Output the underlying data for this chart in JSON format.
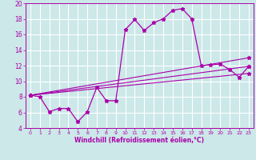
{
  "xlabel": "Windchill (Refroidissement éolien,°C)",
  "bg_color": "#cce8e8",
  "line_color": "#aa00aa",
  "grid_color": "#ffffff",
  "xlim": [
    -0.5,
    23.5
  ],
  "ylim": [
    4,
    20
  ],
  "xticks": [
    0,
    1,
    2,
    3,
    4,
    5,
    6,
    7,
    8,
    9,
    10,
    11,
    12,
    13,
    14,
    15,
    16,
    17,
    18,
    19,
    20,
    21,
    22,
    23
  ],
  "yticks": [
    4,
    6,
    8,
    10,
    12,
    14,
    16,
    18,
    20
  ],
  "line1_x": [
    0,
    1,
    2,
    3,
    4,
    5,
    6,
    7,
    8,
    9,
    10,
    11,
    12,
    13,
    14,
    15,
    16,
    17,
    18,
    19,
    20,
    21,
    22,
    23
  ],
  "line1_y": [
    8.2,
    8.0,
    6.1,
    6.5,
    6.5,
    4.8,
    6.1,
    9.2,
    7.5,
    7.5,
    16.6,
    17.9,
    16.5,
    17.5,
    18.0,
    19.1,
    19.3,
    18.0,
    12.0,
    12.1,
    12.2,
    11.5,
    10.5,
    11.9
  ],
  "straight_lines": [
    {
      "x": [
        0,
        23
      ],
      "y": [
        8.2,
        13.0
      ],
      "markers": [
        0,
        23
      ]
    },
    {
      "x": [
        0,
        23
      ],
      "y": [
        8.2,
        11.9
      ],
      "markers": [
        0,
        23
      ]
    },
    {
      "x": [
        0,
        23
      ],
      "y": [
        8.2,
        11.0
      ],
      "markers": [
        0,
        23
      ]
    }
  ]
}
